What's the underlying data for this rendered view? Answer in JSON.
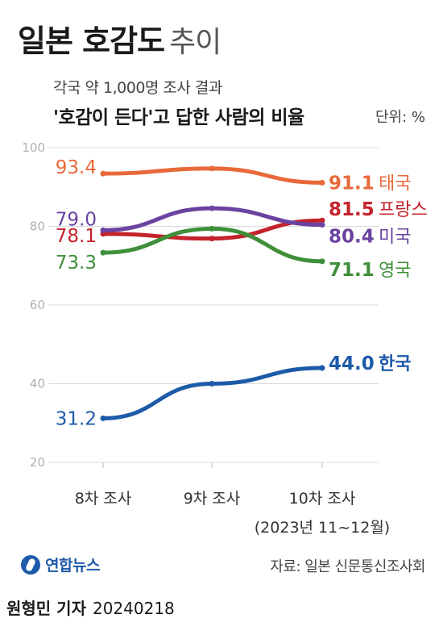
{
  "title": {
    "bold": "일본 호감도",
    "light": "추이"
  },
  "subtitle": "각국 약 1,000명 조사 결과",
  "headline": "'호감이 든다'고 답한 사람의 비율",
  "unit": "단위: %",
  "chart_data": {
    "type": "line",
    "title": "일본 호감도 추이",
    "ylabel": "",
    "xlabel": "",
    "ylim": [
      20,
      100
    ],
    "yticks": [
      20,
      40,
      60,
      80,
      100
    ],
    "grid": true,
    "categories": [
      "8차 조사",
      "9차 조사",
      "10차 조사"
    ],
    "category_note": "(2023년 11~12월)",
    "series": [
      {
        "name": "태국",
        "color": "#e8693a",
        "values": [
          93.4,
          94.7,
          91.1
        ],
        "labels": [
          "93.4",
          "",
          "91.1"
        ]
      },
      {
        "name": "프랑스",
        "color": "#c4232b",
        "values": [
          78.1,
          76.9,
          81.5
        ],
        "labels": [
          "78.1",
          "",
          "81.5"
        ]
      },
      {
        "name": "미국",
        "color": "#6a43a0",
        "values": [
          79.0,
          84.6,
          80.4
        ],
        "labels": [
          "79.0",
          "",
          "80.4"
        ]
      },
      {
        "name": "영국",
        "color": "#3f8f3a",
        "values": [
          73.3,
          79.4,
          71.1
        ],
        "labels": [
          "73.3",
          "",
          "71.1"
        ]
      },
      {
        "name": "한국",
        "color": "#1d5aa8",
        "values": [
          31.2,
          40.0,
          44.0
        ],
        "labels": [
          "31.2",
          "",
          "44.0"
        ]
      }
    ]
  },
  "footer": {
    "logo": "연합뉴스",
    "source": "자료: 일본 신문통신조사회"
  },
  "credit": {
    "author": "원형민 기자",
    "date": "20240218"
  }
}
